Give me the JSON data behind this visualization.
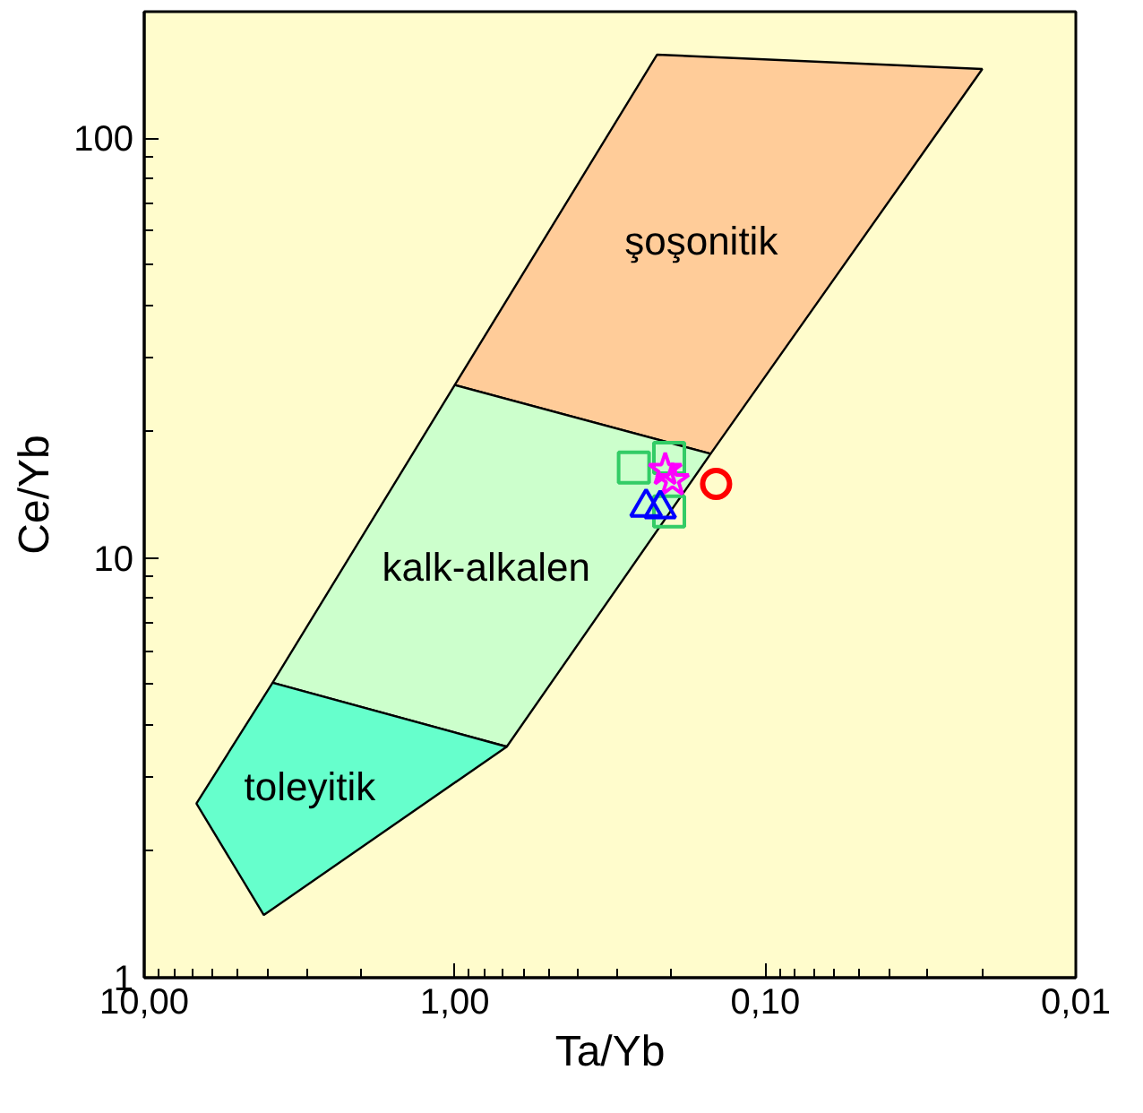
{
  "chart_data": {
    "type": "scatter",
    "xlabel": "Ta/Yb",
    "ylabel": "Ce/Yb",
    "log": "xy",
    "grid": false,
    "legend": false,
    "xlim": [
      10,
      0.01
    ],
    "ylim": [
      1,
      200
    ],
    "xticks": [
      {
        "value": 10,
        "label": "10,00"
      },
      {
        "value": 9,
        "label": null
      },
      {
        "value": 8,
        "label": null
      },
      {
        "value": 7,
        "label": null
      },
      {
        "value": 6,
        "label": null
      },
      {
        "value": 5,
        "label": null
      },
      {
        "value": 4,
        "label": null
      },
      {
        "value": 3,
        "label": null
      },
      {
        "value": 2,
        "label": null
      },
      {
        "value": 1,
        "label": "1,00"
      },
      {
        "value": 0.9,
        "label": null
      },
      {
        "value": 0.8,
        "label": null
      },
      {
        "value": 0.7,
        "label": null
      },
      {
        "value": 0.6,
        "label": null
      },
      {
        "value": 0.5,
        "label": null
      },
      {
        "value": 0.4,
        "label": null
      },
      {
        "value": 0.3,
        "label": null
      },
      {
        "value": 0.2,
        "label": null
      },
      {
        "value": 0.1,
        "label": "0,10"
      },
      {
        "value": 0.09,
        "label": null
      },
      {
        "value": 0.08,
        "label": null
      },
      {
        "value": 0.07,
        "label": null
      },
      {
        "value": 0.06,
        "label": null
      },
      {
        "value": 0.05,
        "label": null
      },
      {
        "value": 0.04,
        "label": null
      },
      {
        "value": 0.03,
        "label": null
      },
      {
        "value": 0.02,
        "label": null
      },
      {
        "value": 0.01,
        "label": "0,01"
      }
    ],
    "yticks": [
      1,
      {
        "value": 2,
        "label": null
      },
      {
        "value": 3,
        "label": null
      },
      {
        "value": 4,
        "label": null
      },
      {
        "value": 5,
        "label": null
      },
      {
        "value": 6,
        "label": null
      },
      {
        "value": 7,
        "label": null
      },
      {
        "value": 8,
        "label": null
      },
      {
        "value": 9,
        "label": null
      },
      10,
      {
        "value": 20,
        "label": null
      },
      {
        "value": 30,
        "label": null
      },
      {
        "value": 40,
        "label": null
      },
      {
        "value": 50,
        "label": null
      },
      {
        "value": 60,
        "label": null
      },
      {
        "value": 70,
        "label": null
      },
      {
        "value": 80,
        "label": null
      },
      {
        "value": 90,
        "label": null
      },
      100
    ],
    "series": [
      {
        "type": "area",
        "name": "şoşonitik",
        "color": "#ffcc99",
        "x": [
          1.0,
          0.223,
          0.02,
          0.15
        ],
        "values": [
          25.8,
          158,
          146,
          17.7
        ]
      },
      {
        "type": "area",
        "name": "kalk-alkalen",
        "color": "#ccffcc",
        "x": [
          1.0,
          0.15,
          0.68,
          3.86
        ],
        "values": [
          25.8,
          17.7,
          3.55,
          5.04
        ]
      },
      {
        "type": "area",
        "name": "toleyitik",
        "color": "#66ffcc",
        "x": [
          3.86,
          0.68,
          4.12,
          6.79
        ],
        "values": [
          5.04,
          3.55,
          1.41,
          2.6
        ]
      },
      {
        "marker": "square",
        "color": "#33cc66",
        "x": [
          0.265,
          0.204,
          0.204
        ],
        "values": [
          16.4,
          17.3,
          12.9
        ]
      },
      {
        "marker": "star",
        "color": "#ff00ff",
        "x": [
          0.21,
          0.199
        ],
        "values": [
          16.2,
          15.3
        ]
      },
      {
        "marker": "triangle",
        "color": "#0000ff",
        "x": [
          0.242,
          0.218
        ],
        "values": [
          13.2,
          13.1
        ]
      },
      {
        "marker": "circle",
        "color": "#ff0000",
        "x": [
          0.144
        ],
        "values": [
          15.0
        ]
      }
    ]
  }
}
